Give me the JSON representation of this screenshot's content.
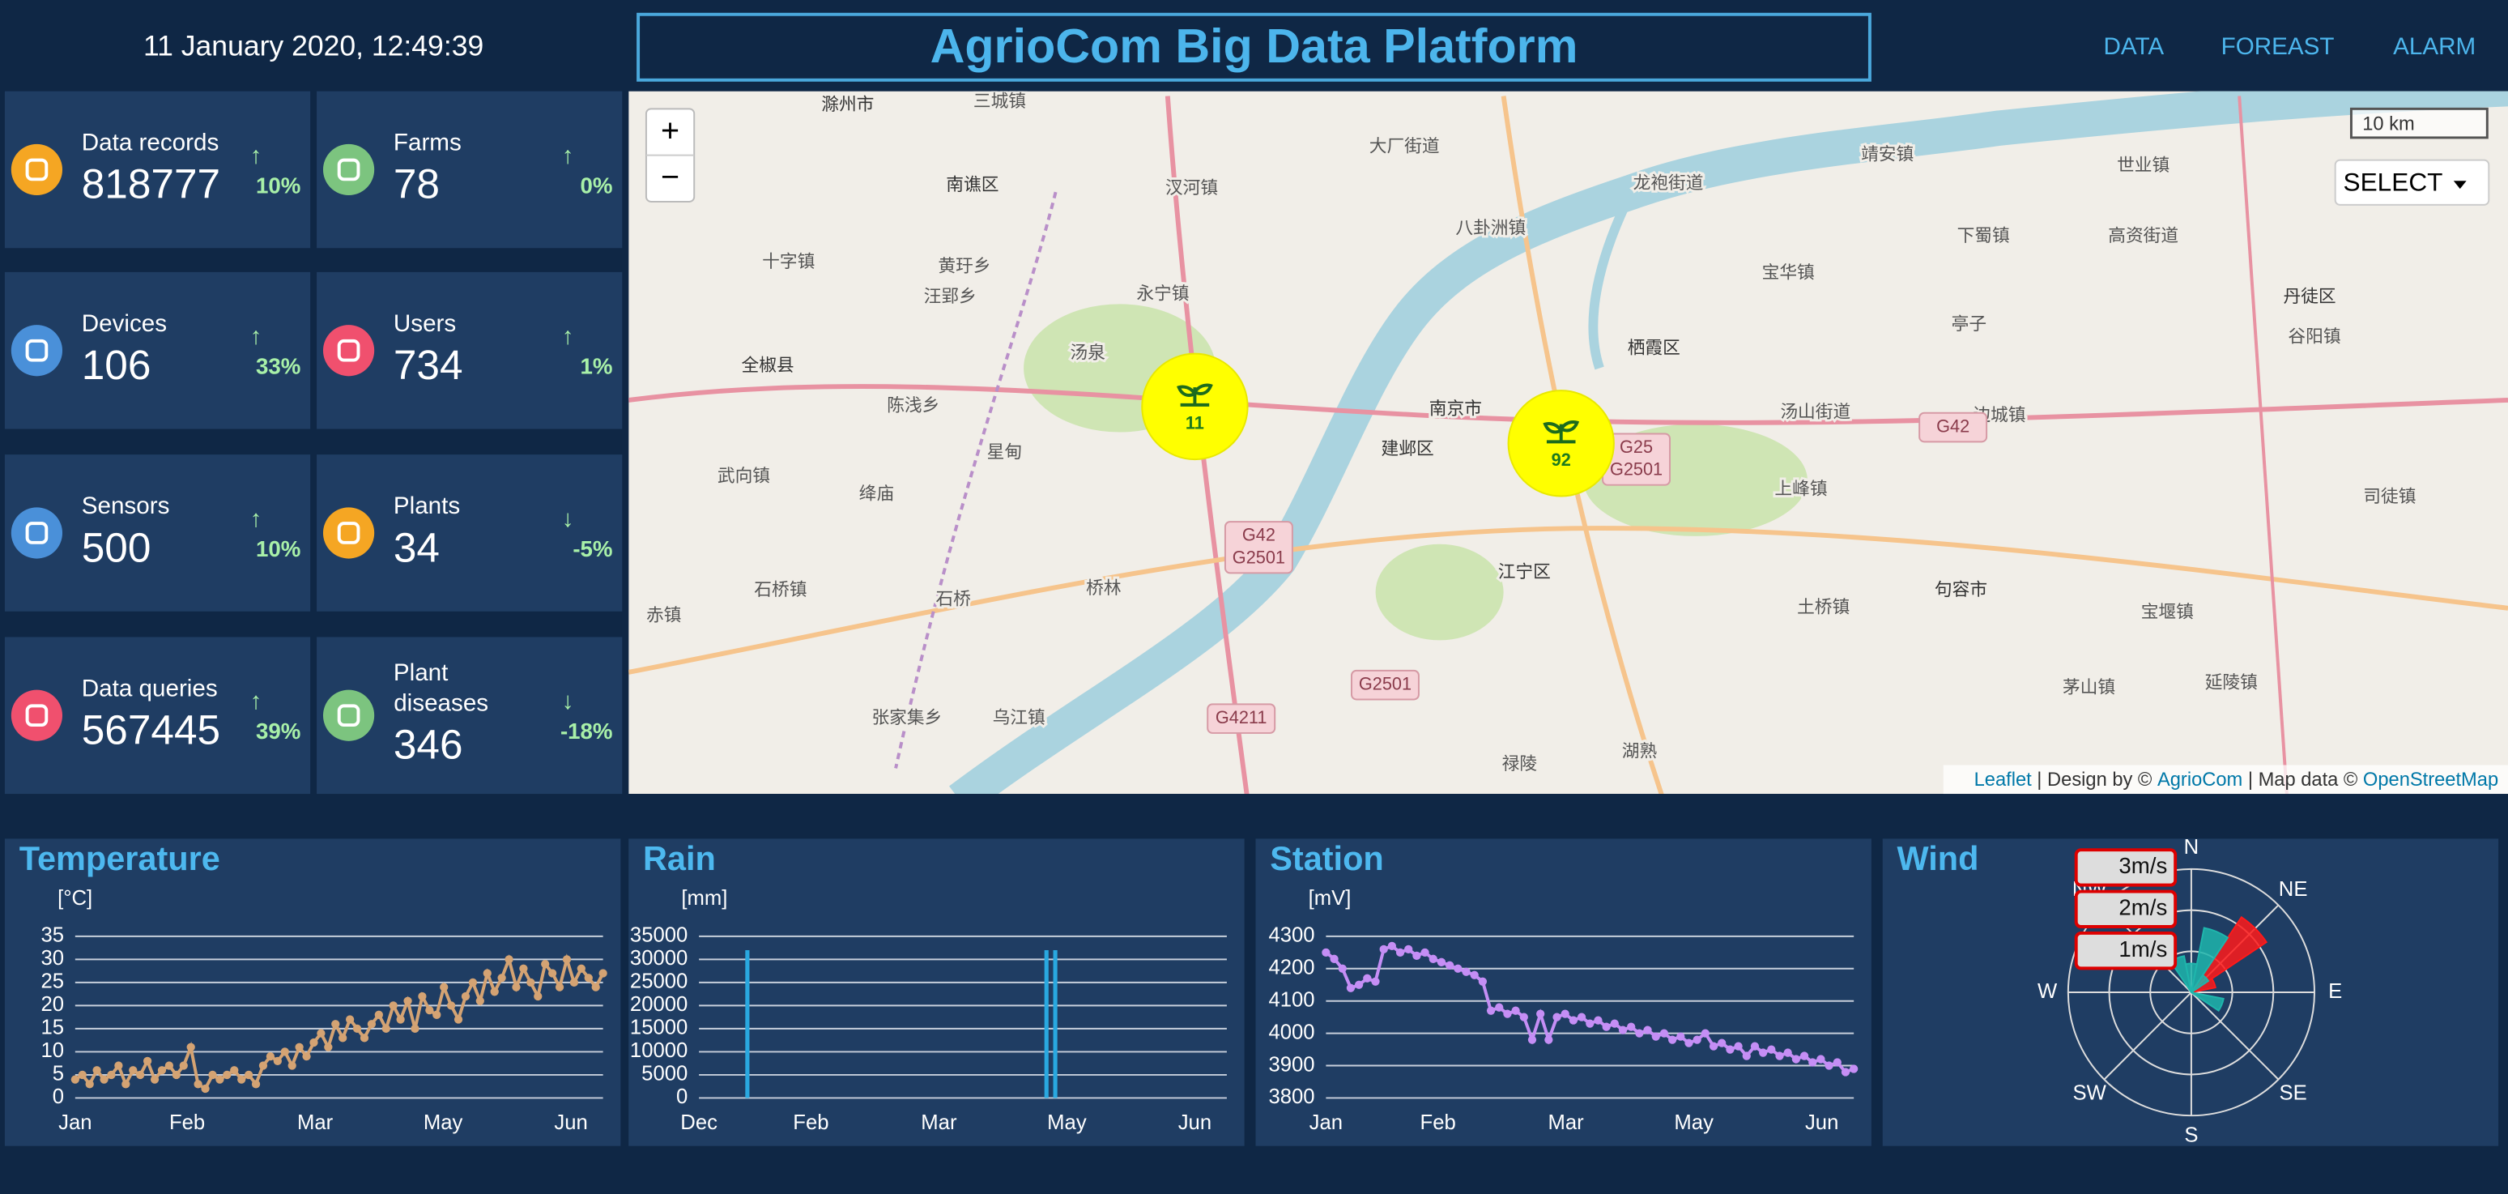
{
  "header": {
    "datetime": "11 January 2020, 12:49:39",
    "title": "AgrioCom Big Data Platform",
    "nav": [
      "DATA",
      "FOREAST",
      "ALARM"
    ]
  },
  "stats": [
    {
      "label": "Data records",
      "value": 818777,
      "arrow": "↑",
      "change": "10%"
    },
    {
      "label": "Farms",
      "value": 78,
      "arrow": "↑",
      "change": "0%"
    },
    {
      "label": "Devices",
      "value": 106,
      "arrow": "↑",
      "change": "33%"
    },
    {
      "label": "Users",
      "value": 734,
      "arrow": "↑",
      "change": "1%"
    },
    {
      "label": "Sensors",
      "value": 500,
      "arrow": "↑",
      "change": "10%"
    },
    {
      "label": "Plants",
      "value": 34,
      "arrow": "↓",
      "change": "-5%"
    },
    {
      "label": "Data queries",
      "value": 567445,
      "arrow": "↑",
      "change": "39%"
    },
    {
      "label": "Plant diseases",
      "value": 346,
      "arrow": "↓",
      "change": "-18%"
    }
  ],
  "map": {
    "zoom_in": "+",
    "zoom_out": "−",
    "scale": "10 km",
    "select": "SELECT",
    "clusters": [
      11,
      92
    ],
    "labels": [
      "滁州市",
      "三城镇",
      "南谯区",
      "汊河镇",
      "大厂街道",
      "龙袍街道",
      "八卦洲镇",
      "永宁镇",
      "全椒县",
      "汤泉",
      "陈浅乡",
      "南京市",
      "建邺区",
      "栖霞区",
      "江宁区",
      "汤山街道",
      "句容市",
      "丹徒区",
      "石桥镇",
      "乌江镇",
      "张家集乡",
      "禄陵",
      "湖熟",
      "边城镇",
      "上峰镇",
      "土桥镇",
      "宝堰镇",
      "茅山镇",
      "靖安镇",
      "世业镇",
      "星甸",
      "武向镇",
      "绛庙",
      "石桥",
      "桥林",
      "赤镇",
      "延陵镇",
      "亭子",
      "宝华镇",
      "下蜀镇",
      "高资街道",
      "谷阳镇",
      "司徒镇",
      "十字镇",
      "黄玗乡",
      "汪郢乡"
    ],
    "road_shields": [
      [
        "G42",
        "G2501"
      ],
      [
        "G25",
        "G2501"
      ],
      [
        "G2501"
      ],
      [
        "G4211"
      ],
      [
        "G42"
      ]
    ],
    "attribution": [
      "Leaflet",
      " | Design by © ",
      "AgrioCom",
      " | Map data © ",
      "OpenStreetMap"
    ]
  },
  "chart_data": [
    {
      "type": "line",
      "title": "Temperature",
      "y_label": "[°C]",
      "x_labels": [
        "Jan",
        "Feb",
        "Mar",
        "May",
        "Jun"
      ],
      "ylim": [
        0,
        35
      ],
      "yticks": [
        0,
        5,
        10,
        15,
        20,
        25,
        30,
        35
      ],
      "color": "#d4a373",
      "values": [
        4,
        5,
        3,
        6,
        4,
        5,
        7,
        3,
        6,
        5,
        8,
        4,
        6,
        7,
        5,
        7,
        11,
        3,
        2,
        5,
        4,
        5,
        6,
        4,
        5,
        3,
        7,
        9,
        8,
        10,
        7,
        11,
        9,
        12,
        14,
        11,
        16,
        13,
        17,
        15,
        13,
        16,
        18,
        15,
        20,
        17,
        21,
        15,
        22,
        19,
        18,
        24,
        20,
        17,
        22,
        25,
        21,
        27,
        23,
        26,
        30,
        24,
        28,
        25,
        22,
        29,
        27,
        24,
        30,
        25,
        28,
        26,
        24,
        27
      ]
    },
    {
      "type": "bar",
      "title": "Rain",
      "y_label": "[mm]",
      "x_labels": [
        "Dec",
        "Feb",
        "Mar",
        "May",
        "Jun"
      ],
      "ylim": [
        0,
        35000
      ],
      "yticks": [
        0,
        5000,
        10000,
        15000,
        20000,
        25000,
        30000,
        35000
      ],
      "color": "#29a8e0",
      "values": [
        0,
        0,
        0,
        0,
        0,
        32000,
        0,
        0,
        0,
        0,
        0,
        0,
        0,
        0,
        0,
        0,
        0,
        0,
        0,
        0,
        0,
        0,
        0,
        0,
        0,
        0,
        0,
        0,
        0,
        0,
        0,
        0,
        0,
        0,
        0,
        0,
        0,
        0,
        0,
        32000,
        32000,
        0,
        0,
        0,
        0,
        0,
        0,
        0,
        0,
        0,
        0,
        0,
        0,
        0,
        0,
        0,
        0,
        0,
        0,
        0
      ]
    },
    {
      "type": "line",
      "title": "Station",
      "y_label": "[mV]",
      "x_labels": [
        "Jan",
        "Feb",
        "Mar",
        "May",
        "Jun"
      ],
      "ylim": [
        3800,
        4300
      ],
      "yticks": [
        3800,
        3900,
        4000,
        4100,
        4200,
        4300
      ],
      "color": "#c58ef5",
      "values": [
        4250,
        4230,
        4200,
        4140,
        4150,
        4170,
        4160,
        4260,
        4270,
        4250,
        4260,
        4240,
        4250,
        4230,
        4220,
        4210,
        4200,
        4190,
        4180,
        4160,
        4070,
        4080,
        4060,
        4070,
        4050,
        3980,
        4060,
        3980,
        4050,
        4060,
        4040,
        4050,
        4030,
        4040,
        4020,
        4030,
        4010,
        4020,
        4000,
        4010,
        3990,
        4000,
        3980,
        3990,
        3970,
        3980,
        4000,
        3960,
        3970,
        3950,
        3960,
        3930,
        3960,
        3940,
        3950,
        3930,
        3940,
        3920,
        3930,
        3910,
        3920,
        3900,
        3910,
        3880,
        3890
      ]
    },
    {
      "type": "rose",
      "title": "Wind",
      "directions": [
        "N",
        null,
        "NE",
        null,
        "E",
        null,
        "SE",
        null,
        "S",
        null,
        "SW",
        null,
        "W",
        null,
        "NW",
        null
      ],
      "rlim": [
        0,
        3
      ],
      "series": [
        {
          "name": "3m/s",
          "color": "#ff1a1a",
          "values": [
            0,
            0,
            2.2,
            0.6,
            0,
            0,
            0,
            0,
            0,
            0,
            0,
            0,
            0,
            0,
            0,
            0
          ]
        },
        {
          "name": "2m/s",
          "color": "#f7a35c",
          "values": [
            0,
            0,
            0,
            0,
            0,
            0,
            0,
            0,
            0,
            0,
            0,
            0,
            0,
            0,
            0,
            0
          ]
        },
        {
          "name": "1m/s",
          "color": "#1fb5ac",
          "values": [
            0.7,
            1.6,
            0.5,
            0,
            0,
            0.8,
            0,
            0,
            0,
            0,
            0,
            0,
            0,
            0,
            0,
            0.9
          ]
        }
      ]
    }
  ]
}
